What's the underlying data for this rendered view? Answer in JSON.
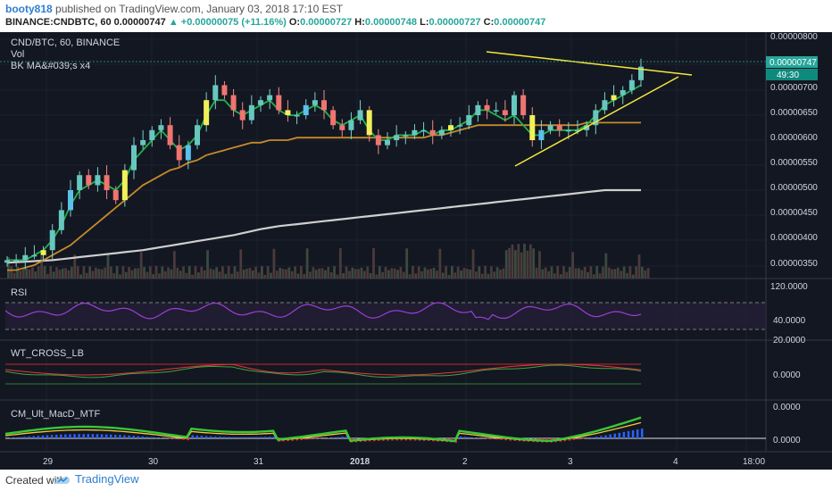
{
  "header": {
    "author": "booty818",
    "published": "published on TradingView.com, January 03, 2018 17:10 EST",
    "symbol": "BINANCE:CNDBTC, 60",
    "price": "0.00000747",
    "change": "+0.00000075 (+11.16%)",
    "o_label": "O:",
    "o_val": "0.00000727",
    "h_label": "H:",
    "h_val": "0.00000748",
    "l_label": "L:",
    "l_val": "0.00000727",
    "c_label": "C:",
    "c_val": "0.00000747"
  },
  "footer": {
    "created": "Created with",
    "brand": "TradingView"
  },
  "colors": {
    "bg": "#131722",
    "up": "#26a69a",
    "down": "#ef5350",
    "green_line": "#21b34a",
    "orange_line": "#c58a2b",
    "white_line": "#cfcfcf",
    "trend": "#f5e83b"
  },
  "chart_data": [
    {
      "type": "candlestick",
      "title": "CND/BTC, 60, BINANCE",
      "legend": [
        "Vol",
        "BK MA&#039;s x4"
      ],
      "ylim": [
        3.3e-06,
        8.1e-06
      ],
      "price_axis": [
        "0.00000800",
        "0.00000700",
        "0.00000650",
        "0.00000600",
        "0.00000550",
        "0.00000500",
        "0.00000450",
        "0.00000400",
        "0.00000350"
      ],
      "last_price": "0.00000747",
      "countdown": "49:30",
      "x_labels": [
        "29",
        "30",
        "31",
        "2018",
        "2",
        "3",
        "4",
        "18:00"
      ],
      "close_series": [
        3.6,
        3.6,
        3.7,
        3.7,
        3.8,
        4.2,
        4.6,
        5.0,
        5.3,
        5.1,
        5.3,
        5.0,
        4.8,
        5.4,
        5.9,
        6.0,
        6.2,
        6.3,
        5.9,
        5.6,
        5.9,
        6.3,
        6.8,
        7.1,
        6.9,
        6.6,
        6.4,
        6.7,
        6.8,
        6.9,
        6.6,
        6.5,
        6.5,
        6.7,
        6.8,
        6.6,
        6.3,
        6.2,
        6.4,
        6.6,
        6.1,
        5.9,
        6.0,
        6.1,
        6.1,
        6.2,
        6.2,
        6.1,
        6.2,
        6.3,
        6.3,
        6.5,
        6.7,
        6.6,
        6.6,
        6.5,
        6.9,
        6.5,
        6.0,
        6.2,
        6.3,
        6.2,
        6.2,
        6.2,
        6.3,
        6.6,
        6.8,
        6.9,
        7.0,
        7.2,
        7.47
      ],
      "ema_green": [
        3.6,
        3.6,
        3.6,
        3.7,
        3.8,
        4.0,
        4.3,
        4.7,
        5.0,
        5.1,
        5.2,
        5.1,
        5.0,
        5.2,
        5.6,
        5.8,
        6.0,
        6.2,
        6.0,
        5.8,
        5.9,
        6.1,
        6.5,
        6.8,
        6.8,
        6.6,
        6.5,
        6.6,
        6.7,
        6.8,
        6.6,
        6.5,
        6.5,
        6.6,
        6.7,
        6.6,
        6.4,
        6.3,
        6.4,
        6.5,
        6.2,
        6.0,
        6.0,
        6.1,
        6.1,
        6.1,
        6.2,
        6.1,
        6.2,
        6.2,
        6.3,
        6.4,
        6.6,
        6.6,
        6.5,
        6.4,
        6.5,
        6.3,
        6.1,
        6.1,
        6.2,
        6.2,
        6.2,
        6.2,
        6.3,
        6.5,
        6.7,
        6.8,
        6.9,
        7.0,
        7.1
      ],
      "ma_orange": [
        3.4,
        3.4,
        3.45,
        3.5,
        3.6,
        3.7,
        3.8,
        3.9,
        4.05,
        4.2,
        4.35,
        4.5,
        4.65,
        4.8,
        4.95,
        5.1,
        5.2,
        5.3,
        5.4,
        5.45,
        5.55,
        5.6,
        5.7,
        5.75,
        5.8,
        5.85,
        5.9,
        5.95,
        5.95,
        6.0,
        6.0,
        6.0,
        6.05,
        6.05,
        6.05,
        6.05,
        6.05,
        6.05,
        6.05,
        6.05,
        6.05,
        6.05,
        6.05,
        6.05,
        6.05,
        6.05,
        6.05,
        6.1,
        6.1,
        6.15,
        6.2,
        6.25,
        6.3,
        6.3,
        6.3,
        6.3,
        6.3,
        6.3,
        6.3,
        6.3,
        6.3,
        6.3,
        6.3,
        6.3,
        6.35,
        6.35,
        6.35,
        6.35,
        6.35,
        6.35,
        6.35
      ],
      "ma_white": [
        3.55,
        3.56,
        3.57,
        3.58,
        3.59,
        3.6,
        3.62,
        3.64,
        3.66,
        3.68,
        3.7,
        3.72,
        3.74,
        3.76,
        3.78,
        3.8,
        3.83,
        3.86,
        3.89,
        3.92,
        3.95,
        3.98,
        4.01,
        4.04,
        4.07,
        4.1,
        4.14,
        4.18,
        4.22,
        4.25,
        4.28,
        4.3,
        4.32,
        4.34,
        4.36,
        4.38,
        4.4,
        4.42,
        4.44,
        4.46,
        4.48,
        4.5,
        4.52,
        4.54,
        4.56,
        4.58,
        4.6,
        4.62,
        4.64,
        4.66,
        4.68,
        4.7,
        4.72,
        4.74,
        4.76,
        4.78,
        4.8,
        4.82,
        4.84,
        4.86,
        4.88,
        4.9,
        4.92,
        4.94,
        4.96,
        4.98,
        5.0,
        5.0,
        5.0,
        5.0,
        5.0
      ]
    },
    {
      "type": "line",
      "title": "RSI",
      "axis": [
        "120.0000",
        "40.0000",
        "20.0000"
      ]
    },
    {
      "type": "line",
      "title": "WT_CROSS_LB",
      "axis": [
        "0.0000"
      ]
    },
    {
      "type": "line",
      "title": "CM_Ult_MacD_MTF",
      "axis": [
        "0.0000",
        "0.0000"
      ]
    }
  ]
}
